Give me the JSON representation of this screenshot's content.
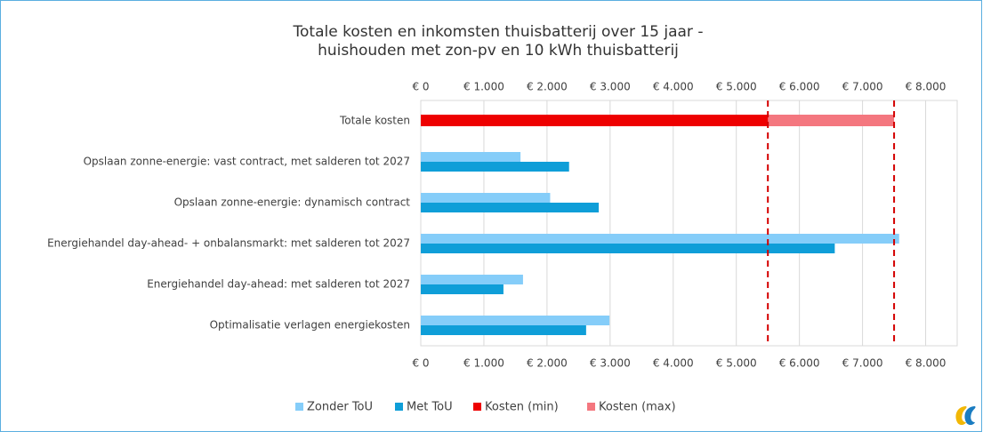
{
  "chart_data": {
    "type": "hbar",
    "title_lines": [
      "Totale kosten en inkomsten thuisbatterij over 15 jaar -",
      "huishouden met zon-pv en 10 kWh thuisbatterij"
    ],
    "categories": [
      "Totale kosten",
      "Opslaan zonne-energie: vast contract, met salderen tot 2027",
      "Opslaan zonne-energie: dynamisch contract",
      "Energiehandel day-ahead- + onbalansmarkt: met salderen tot 2027",
      "Energiehandel day-ahead: met salderen tot 2027",
      "Optimalisatie verlagen energiekosten"
    ],
    "series": [
      {
        "name": "Zonder ToU",
        "color": "#85cdf9",
        "values": [
          null,
          1580,
          2050,
          7580,
          1620,
          2990
        ]
      },
      {
        "name": "Met ToU",
        "color": "#0f9ed8",
        "values": [
          null,
          2350,
          2820,
          6560,
          1310,
          2620
        ]
      },
      {
        "name": "Kosten (min)",
        "color": "#ee0000",
        "values": [
          5500,
          null,
          null,
          null,
          null,
          null
        ]
      },
      {
        "name": "Kosten (max)",
        "color": "#f4777f",
        "values": [
          7500,
          null,
          null,
          null,
          null,
          null
        ]
      }
    ],
    "xlim": [
      0,
      8500
    ],
    "xticks": [
      {
        "value": 0,
        "label": "€ 0"
      },
      {
        "value": 1000,
        "label": "€ 1.000"
      },
      {
        "value": 2000,
        "label": "€ 2.000"
      },
      {
        "value": 3000,
        "label": "€ 3.000"
      },
      {
        "value": 4000,
        "label": "€ 4.000"
      },
      {
        "value": 5000,
        "label": "€ 5.000"
      },
      {
        "value": 6000,
        "label": "€ 6.000"
      },
      {
        "value": 7000,
        "label": "€ 7.000"
      },
      {
        "value": 8000,
        "label": "€ 8.000"
      }
    ],
    "grid": true
  }
}
